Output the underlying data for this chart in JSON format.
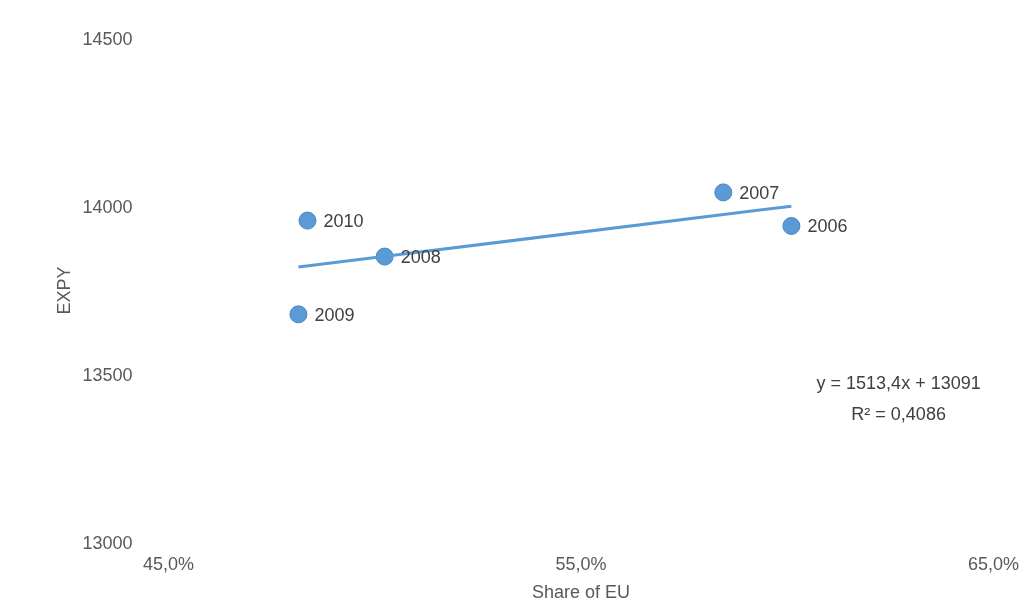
{
  "chart_data": {
    "type": "scatter",
    "xlabel": "Share of EU",
    "ylabel": "EXPY",
    "xlim": [
      0.45,
      0.65
    ],
    "xticks": [
      {
        "value": 0.45,
        "label": "45,0%"
      },
      {
        "value": 0.55,
        "label": "55,0%"
      },
      {
        "value": 0.65,
        "label": "65,0%"
      }
    ],
    "ylim": [
      13000,
      14500
    ],
    "yticks": [
      13000,
      13500,
      14000,
      14500
    ],
    "grid": false,
    "series": [
      {
        "color": "#5b9bd5",
        "marker": "circle",
        "x": [
          0.601,
          0.5845,
          0.5024,
          0.4815,
          0.4837
        ],
        "values": [
          13942,
          14042,
          13851,
          13679,
          13958
        ]
      },
      {
        "type": "line",
        "color": "#5b9bd5",
        "x": [
          0.4815,
          0.601
        ],
        "values": [
          13820,
          14001
        ]
      }
    ],
    "annotations": [
      {
        "text": "2006",
        "x": 0.601,
        "y": 13942
      },
      {
        "text": "2007",
        "x": 0.5845,
        "y": 14042
      },
      {
        "text": "2008",
        "x": 0.5024,
        "y": 13851
      },
      {
        "text": "2009",
        "x": 0.4815,
        "y": 13679
      },
      {
        "text": "2010",
        "x": 0.4837,
        "y": 13958
      },
      "y = 1513,4x + 13091",
      "R² = 0,4086"
    ]
  }
}
